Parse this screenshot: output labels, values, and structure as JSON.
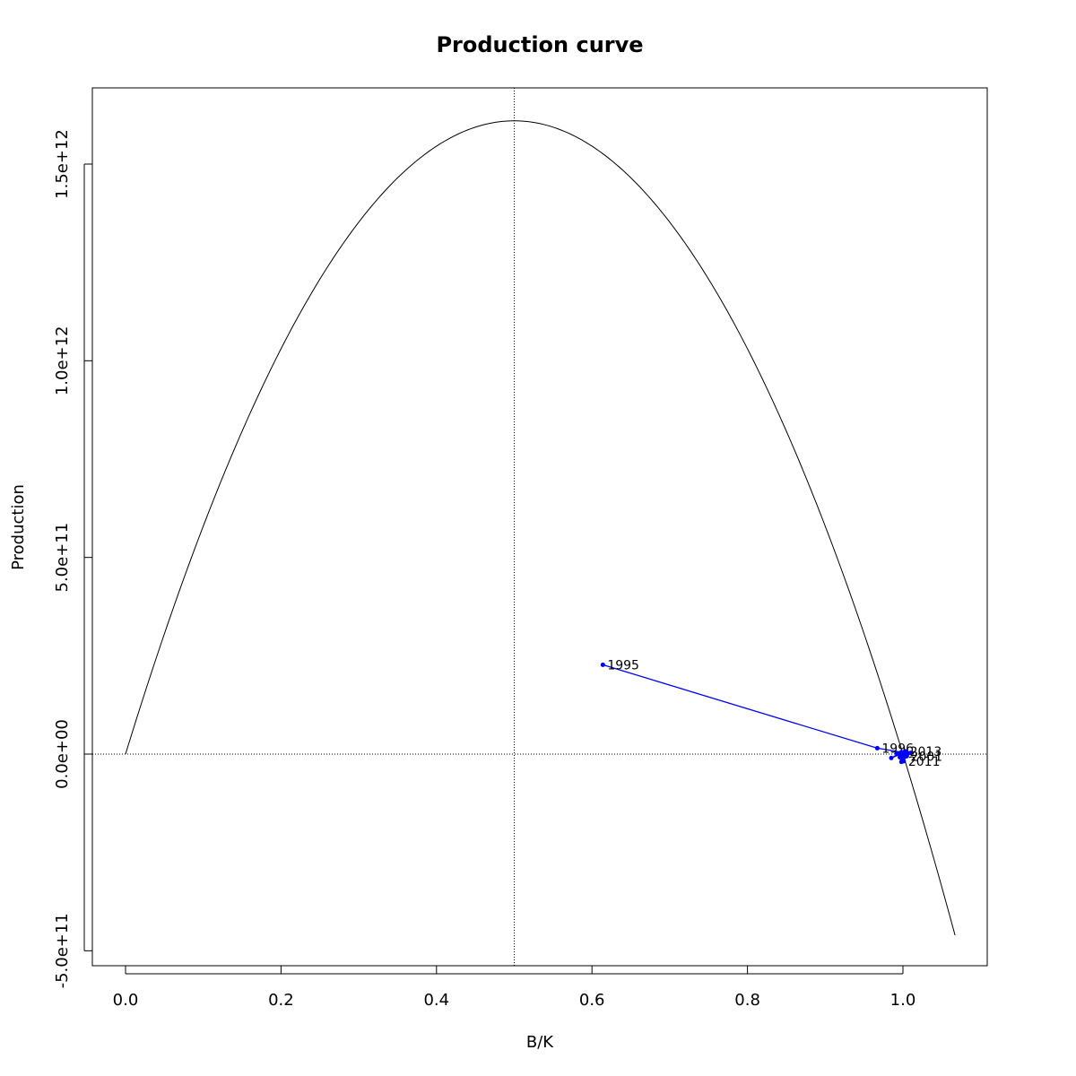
{
  "chart_data": {
    "type": "line",
    "title": "Production curve",
    "xlabel": "B/K",
    "ylabel": "Production",
    "xlim": [
      0.0,
      1.07
    ],
    "ylim": [
      -500000000000.0,
      1650000000000.0
    ],
    "x_ticks": [
      0.0,
      0.2,
      0.4,
      0.6,
      0.8,
      1.0
    ],
    "x_tick_labels": [
      "0.0",
      "0.2",
      "0.4",
      "0.6",
      "0.8",
      "1.0"
    ],
    "y_ticks": [
      -500000000000.0,
      0.0,
      500000000000.0,
      1000000000000.0,
      1500000000000.0
    ],
    "y_tick_labels": [
      "-5.0e+11",
      "0.0e+00",
      "5.0e+11",
      "1.0e+12",
      "1.5e+12"
    ],
    "grid": false,
    "reference_lines": {
      "vertical_x": 0.5,
      "horizontal_y": 0.0
    },
    "curve": {
      "shape": "parabola",
      "peak": {
        "x": 0.5,
        "y": 1610000000000.0
      },
      "zero_at": [
        0.0,
        1.0
      ],
      "x_range": [
        0.0,
        1.067
      ],
      "color": "#000000"
    },
    "trajectory": {
      "color": "#0000ff",
      "points": [
        {
          "x": 0.614,
          "y": 227000000000.0,
          "label": "1995"
        },
        {
          "x": 0.967,
          "y": 15000000000.0,
          "label": "1996"
        },
        {
          "x": 0.998,
          "y": 5000000000.0,
          "label": ""
        },
        {
          "x": 0.985,
          "y": -10000000000.0,
          "label": ""
        },
        {
          "x": 1.004,
          "y": 6000000000.0,
          "label": ""
        },
        {
          "x": 0.992,
          "y": 2000000000.0,
          "label": ""
        },
        {
          "x": 1.0,
          "y": -4000000000.0,
          "label": ""
        },
        {
          "x": 1.01,
          "y": 3000000000.0,
          "label": ""
        },
        {
          "x": 0.998,
          "y": -20000000000.0,
          "label": ""
        },
        {
          "x": 1.005,
          "y": -5000000000.0,
          "label": ""
        },
        {
          "x": 0.996,
          "y": -8000000000.0,
          "label": ""
        },
        {
          "x": 1.002,
          "y": 4000000000.0,
          "label": ""
        },
        {
          "x": 0.999,
          "y": -15000000000.0,
          "label": ""
        },
        {
          "x": 1.006,
          "y": 1000000000.0,
          "label": ""
        },
        {
          "x": 0.997,
          "y": -3000000000.0,
          "label": ""
        },
        {
          "x": 1.003,
          "y": 7000000000.0,
          "label": "2013"
        },
        {
          "x": 1.004,
          "y": -6000000000.0,
          "label": "2001"
        },
        {
          "x": 1.001,
          "y": -18000000000.0,
          "label": "2011"
        }
      ]
    }
  }
}
